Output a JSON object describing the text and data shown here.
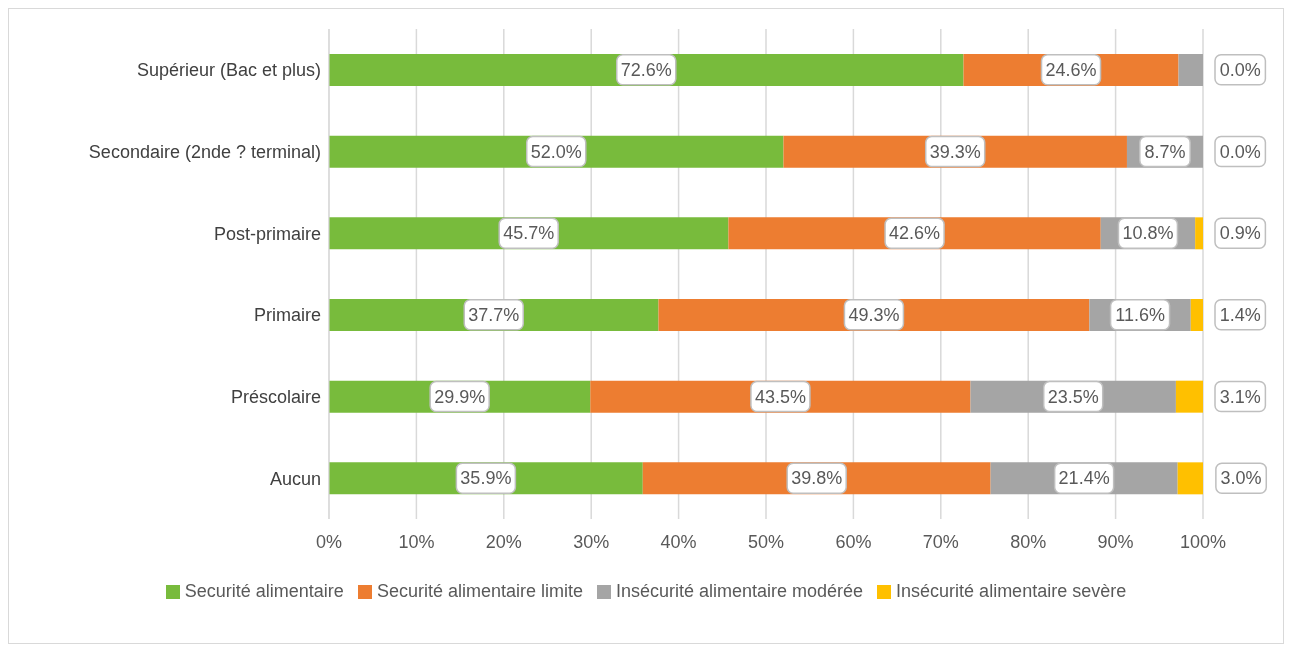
{
  "chart_data": {
    "type": "bar",
    "orientation": "horizontal",
    "stacked": true,
    "categories": [
      "Supérieur  (Bac et plus)",
      "Secondaire (2nde ? terminal)",
      "Post-primaire",
      "Primaire",
      "Préscolaire",
      "Aucun"
    ],
    "series": [
      {
        "name": "Securité alimentaire",
        "color": "#78bb3c",
        "values": [
          72.6,
          52.0,
          45.7,
          37.7,
          29.9,
          35.9
        ],
        "value_labels": [
          "72.6%",
          "52.0%",
          "45.7%",
          "37.7%",
          "29.9%",
          "35.9%"
        ]
      },
      {
        "name": "Securité alimentaire limite",
        "color": "#ed7d31",
        "values": [
          24.6,
          39.3,
          42.6,
          49.3,
          43.5,
          39.8
        ],
        "value_labels": [
          "24.6%",
          "39.3%",
          "42.6%",
          "49.3%",
          "43.5%",
          "39.8%"
        ]
      },
      {
        "name": "Insécurité alimentaire modérée",
        "color": "#a5a5a5",
        "values": [
          2.8,
          8.7,
          10.8,
          11.6,
          23.5,
          21.4
        ],
        "value_labels": [
          null,
          "8.7%",
          "10.8%",
          "11.6%",
          "23.5%",
          "21.4%"
        ]
      },
      {
        "name": "Insécurité alimentaire sevère",
        "color": "#ffc000",
        "values": [
          0.0,
          0.0,
          0.9,
          1.4,
          3.1,
          3.0
        ],
        "value_labels": [
          "0.0%",
          "0.0%",
          "0.9%",
          "1.4%",
          "3.1%",
          "3.0%"
        ]
      }
    ],
    "xlim": [
      0,
      100
    ],
    "xticks": [
      {
        "value": 0,
        "label": "0%"
      },
      {
        "value": 10,
        "label": "10%"
      },
      {
        "value": 20,
        "label": "20%"
      },
      {
        "value": 30,
        "label": "30%"
      },
      {
        "value": 40,
        "label": "40%"
      },
      {
        "value": 50,
        "label": "50%"
      },
      {
        "value": 60,
        "label": "60%"
      },
      {
        "value": 70,
        "label": "70%"
      },
      {
        "value": 80,
        "label": "80%"
      },
      {
        "value": 90,
        "label": "90%"
      },
      {
        "value": 100,
        "label": "100%"
      }
    ],
    "grid": "x",
    "legend": "bottom"
  }
}
